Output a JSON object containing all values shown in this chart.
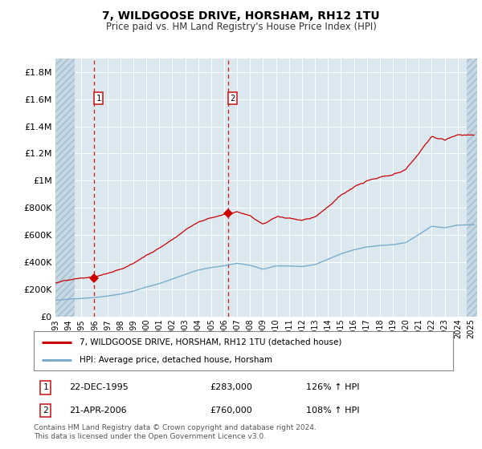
{
  "title": "7, WILDGOOSE DRIVE, HORSHAM, RH12 1TU",
  "subtitle": "Price paid vs. HM Land Registry's House Price Index (HPI)",
  "ylim": [
    0,
    1900000
  ],
  "yticks": [
    0,
    200000,
    400000,
    600000,
    800000,
    1000000,
    1200000,
    1400000,
    1600000,
    1800000
  ],
  "ytick_labels": [
    "£0",
    "£200K",
    "£400K",
    "£600K",
    "£800K",
    "£1M",
    "£1.2M",
    "£1.4M",
    "£1.6M",
    "£1.8M"
  ],
  "xlim_start": 1993.0,
  "xlim_end": 2025.5,
  "sale1_x": 1995.97,
  "sale1_y": 283000,
  "sale1_label": "22-DEC-1995",
  "sale1_price": "£283,000",
  "sale1_hpi": "126% ↑ HPI",
  "sale2_x": 2006.3,
  "sale2_y": 760000,
  "sale2_label": "21-APR-2006",
  "sale2_price": "£760,000",
  "sale2_hpi": "108% ↑ HPI",
  "line_color_red": "#cc0000",
  "line_color_blue": "#7aadcc",
  "plot_bg": "#dce8f0",
  "legend1": "7, WILDGOOSE DRIVE, HORSHAM, RH12 1TU (detached house)",
  "legend2": "HPI: Average price, detached house, Horsham",
  "footnote": "Contains HM Land Registry data © Crown copyright and database right 2024.\nThis data is licensed under the Open Government Licence v3.0.",
  "xtick_years": [
    1993,
    1994,
    1995,
    1996,
    1997,
    1998,
    1999,
    2000,
    2001,
    2002,
    2003,
    2004,
    2005,
    2006,
    2007,
    2008,
    2009,
    2010,
    2011,
    2012,
    2013,
    2014,
    2015,
    2016,
    2017,
    2018,
    2019,
    2020,
    2021,
    2022,
    2023,
    2024,
    2025
  ],
  "hatch_left_end": 1994.5,
  "hatch_right_start": 2024.7
}
